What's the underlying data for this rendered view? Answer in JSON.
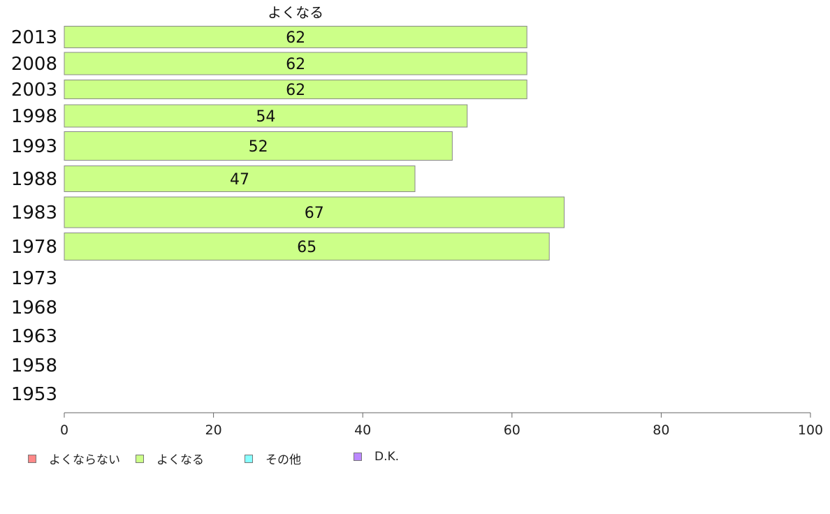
{
  "chart_data": {
    "type": "bar",
    "orientation": "horizontal",
    "categories": [
      "2013",
      "2008",
      "2003",
      "1998",
      "1993",
      "1988",
      "1983",
      "1978",
      "1973",
      "1968",
      "1963",
      "1958",
      "1953"
    ],
    "series": [
      {
        "name": "よくなる",
        "color": "#ccff88",
        "values": [
          62,
          62,
          62,
          54,
          52,
          47,
          67,
          65,
          null,
          null,
          null,
          null,
          null
        ]
      }
    ],
    "data_labels": [
      "62",
      "62",
      "62",
      "54",
      "52",
      "47",
      "67",
      "65",
      "",
      "",
      "",
      "",
      ""
    ],
    "xlim": [
      0,
      100
    ],
    "x_ticks": [
      0,
      20,
      40,
      60,
      80,
      100
    ],
    "legend": [
      {
        "label": "よくならない",
        "color": "#ff8888"
      },
      {
        "label": "よくなる",
        "color": "#ccff88"
      },
      {
        "label": "その他",
        "color": "#88ffff"
      },
      {
        "label": "D.K.",
        "color": "#bb88ff"
      }
    ],
    "legend_position": "bottom-left",
    "grid": false
  }
}
